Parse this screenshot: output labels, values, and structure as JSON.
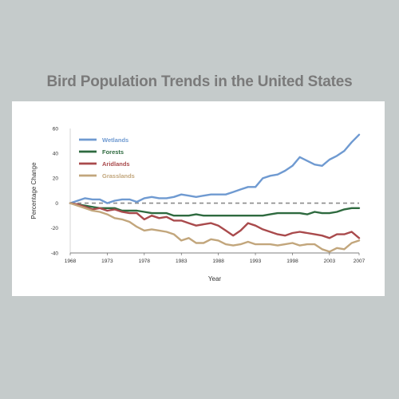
{
  "chart_data": {
    "type": "line",
    "title": "Bird Population Trends in the United States",
    "xlabel": "Year",
    "ylabel": "Percentage Change",
    "xlim": [
      1968,
      2007
    ],
    "ylim": [
      -40,
      60
    ],
    "x_ticks": [
      "1968",
      "1973",
      "1978",
      "1983",
      "1988",
      "1993",
      "1998",
      "2003",
      "2007"
    ],
    "y_ticks": [
      "60",
      "40",
      "20",
      "0",
      "-20",
      "-40"
    ],
    "reference_line": 0,
    "legend_position": "top-left",
    "x": [
      1968,
      1969,
      1970,
      1971,
      1972,
      1973,
      1974,
      1975,
      1976,
      1977,
      1978,
      1979,
      1980,
      1981,
      1982,
      1983,
      1984,
      1985,
      1986,
      1987,
      1988,
      1989,
      1990,
      1991,
      1992,
      1993,
      1994,
      1995,
      1996,
      1997,
      1998,
      1999,
      2000,
      2001,
      2002,
      2003,
      2004,
      2005,
      2006,
      2007
    ],
    "series": [
      {
        "name": "Wetlands",
        "color": "#6f9ad1",
        "values": [
          0,
          2,
          4,
          3,
          3,
          0,
          2,
          3,
          3,
          1,
          4,
          5,
          4,
          4,
          5,
          7,
          6,
          5,
          6,
          7,
          7,
          7,
          9,
          11,
          13,
          13,
          20,
          22,
          23,
          26,
          30,
          37,
          34,
          31,
          30,
          35,
          38,
          42,
          49,
          55
        ]
      },
      {
        "name": "Forests",
        "color": "#2e6a3f",
        "values": [
          0,
          -1,
          -2,
          -3,
          -4,
          -4,
          -4,
          -6,
          -6,
          -6,
          -7,
          -8,
          -8,
          -8,
          -10,
          -10,
          -10,
          -9,
          -10,
          -10,
          -10,
          -10,
          -10,
          -10,
          -10,
          -10,
          -10,
          -9,
          -8,
          -8,
          -8,
          -8,
          -9,
          -7,
          -8,
          -8,
          -7,
          -5,
          -4,
          -4
        ]
      },
      {
        "name": "Aridlands",
        "color": "#a94a4c",
        "values": [
          0,
          -1,
          -3,
          -5,
          -4,
          -6,
          -5,
          -7,
          -8,
          -8,
          -13,
          -10,
          -12,
          -11,
          -14,
          -14,
          -16,
          -18,
          -17,
          -16,
          -18,
          -22,
          -26,
          -22,
          -16,
          -18,
          -21,
          -23,
          -25,
          -26,
          -24,
          -23,
          -24,
          -25,
          -26,
          -28,
          -25,
          -25,
          -23,
          -28
        ]
      },
      {
        "name": "Grasslands",
        "color": "#c2a67c",
        "values": [
          0,
          -2,
          -4,
          -6,
          -7,
          -9,
          -12,
          -13,
          -15,
          -19,
          -22,
          -21,
          -22,
          -23,
          -25,
          -30,
          -28,
          -32,
          -32,
          -29,
          -30,
          -33,
          -34,
          -33,
          -31,
          -33,
          -33,
          -33,
          -34,
          -33,
          -32,
          -34,
          -33,
          -33,
          -37,
          -39,
          -36,
          -37,
          -32,
          -30
        ]
      }
    ]
  }
}
